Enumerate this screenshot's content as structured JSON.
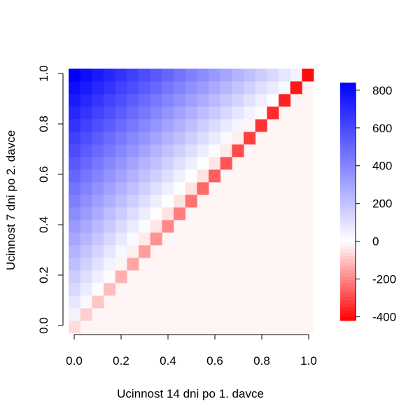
{
  "chart_data": {
    "type": "heatmap",
    "title": "",
    "xlabel": "Ucinnost 14 dni po 1. davce",
    "ylabel": "Ucinnost 7 dni po 2. davce",
    "xlim": [
      0,
      1
    ],
    "ylim": [
      0,
      1
    ],
    "x_ticks": [
      "0.0",
      "0.2",
      "0.4",
      "0.6",
      "0.8",
      "1.0"
    ],
    "y_ticks": [
      "0.0",
      "0.2",
      "0.4",
      "0.6",
      "0.8",
      "1.0"
    ],
    "grid_x_range": [
      0,
      1
    ],
    "grid_y_range": [
      0,
      1
    ],
    "grid_n": 21,
    "cell_rule": "value shown only where y >= x; cells with y < x show 0",
    "value_model": "value = 840*(1-x)*y - 1240*x*(1-y), clipped to [-400, 840]; x = col/20, y = row/20",
    "colorbar": {
      "range": [
        -420,
        840
      ],
      "ticks": [
        "800",
        "600",
        "400",
        "200",
        "0",
        "-200",
        "-400"
      ],
      "tick_values": [
        800,
        600,
        400,
        200,
        0,
        -200,
        -400
      ],
      "colors": {
        "min": "#ff0000",
        "mid": "#ffffff",
        "max": "#0000ff"
      }
    },
    "colors": {
      "negative": "#ff0000",
      "zero": "#ffffff",
      "positive": "#0000ff",
      "empty_region": "#fff5f5"
    }
  }
}
